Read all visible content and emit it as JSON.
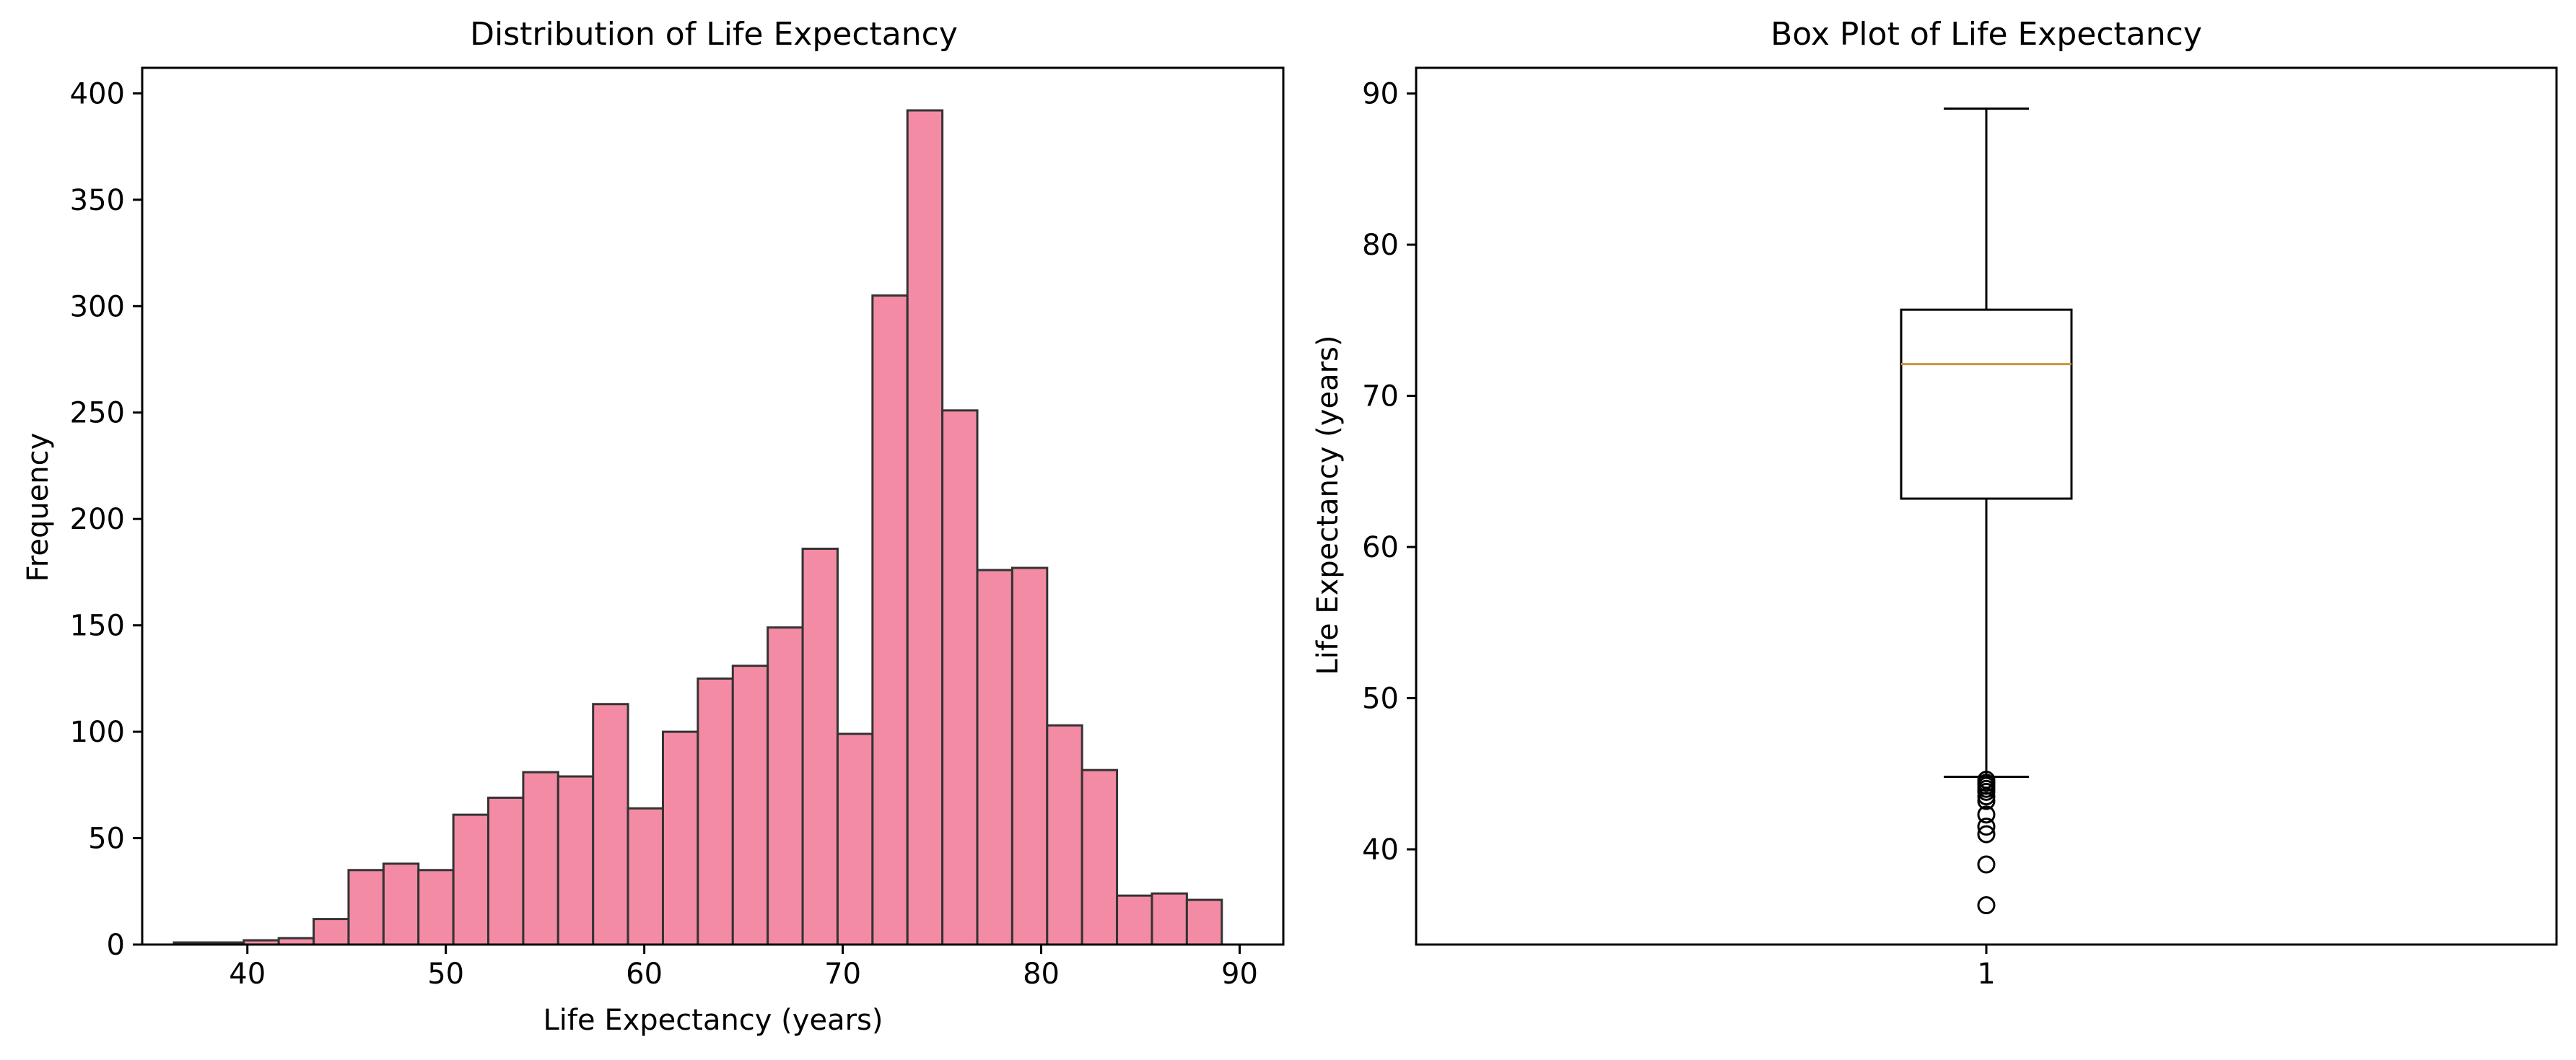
{
  "chart_data": [
    {
      "type": "bar",
      "title": "Distribution of Life Expectancy",
      "xlabel": "Life Expectancy (years)",
      "ylabel": "Frequency",
      "xlim": [
        34.7,
        92.2
      ],
      "ylim": [
        0,
        412
      ],
      "xticks": [
        40,
        50,
        60,
        70,
        80,
        90
      ],
      "yticks": [
        0,
        50,
        100,
        150,
        200,
        250,
        300,
        350,
        400
      ],
      "grid": false,
      "bar_color": "#f48ba4",
      "edge_color": "#333333",
      "bin_edges": [
        36.3,
        38.06,
        39.82,
        41.58,
        43.34,
        45.1,
        46.86,
        48.62,
        50.38,
        52.14,
        53.9,
        55.66,
        57.42,
        59.18,
        60.94,
        62.7,
        64.46,
        66.22,
        67.98,
        69.74,
        71.5,
        73.26,
        75.02,
        76.78,
        78.54,
        80.3,
        82.06,
        83.82,
        85.58,
        87.34,
        89.1
      ],
      "values": [
        1,
        1,
        2,
        3,
        12,
        35,
        38,
        35,
        61,
        69,
        81,
        79,
        113,
        64,
        100,
        125,
        131,
        149,
        186,
        99,
        305,
        392,
        251,
        176,
        177,
        103,
        82,
        23,
        24,
        21
      ]
    },
    {
      "type": "box",
      "title": "Box Plot of Life Expectancy",
      "xlabel": "",
      "ylabel": "Life Expectancy (years)",
      "ylim": [
        33.7,
        91.7
      ],
      "yticks": [
        40,
        50,
        60,
        70,
        80,
        90
      ],
      "categories": [
        "1"
      ],
      "grid": false,
      "median_color": "#c8963e",
      "boxes": [
        {
          "whisker_low": 44.8,
          "q1": 63.2,
          "median": 72.1,
          "q3": 75.7,
          "whisker_high": 89.0,
          "outliers": [
            44.6,
            44.4,
            44.2,
            44.0,
            43.8,
            43.5,
            43.2,
            42.3,
            41.5,
            41.0,
            39.0,
            36.3
          ]
        }
      ]
    }
  ]
}
